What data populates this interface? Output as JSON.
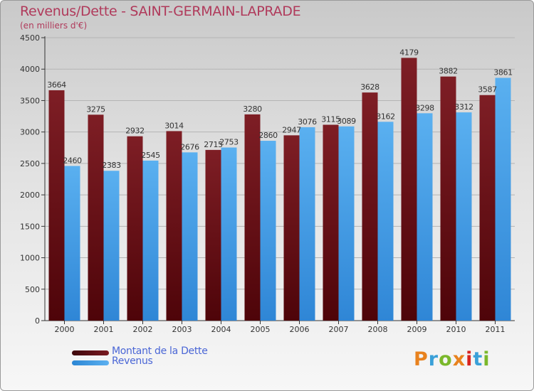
{
  "title": "Revenus/Dette - SAINT-GERMAIN-LAPRADE",
  "subtitle": "(en milliers d'€)",
  "legend": [
    {
      "label": "Montant de la Dette",
      "color": "#6b0f16"
    },
    {
      "label": "Revenus",
      "color": "#3d9ae6"
    }
  ],
  "logo": {
    "text": "Proxiti",
    "colors": [
      "#e8821e",
      "#3aa0d8",
      "#7ab82b",
      "#e8821e",
      "#d8231f",
      "#3aa0d8",
      "#7ab82b"
    ]
  },
  "chart_data": {
    "type": "bar",
    "categories": [
      "2000",
      "2001",
      "2002",
      "2003",
      "2004",
      "2005",
      "2006",
      "2007",
      "2008",
      "2009",
      "2010",
      "2011"
    ],
    "series": [
      {
        "name": "Montant de la Dette",
        "color": "#6b0f16",
        "values": [
          3664,
          3275,
          2932,
          3014,
          2715,
          3280,
          2947,
          3115,
          3628,
          4179,
          3882,
          3587
        ]
      },
      {
        "name": "Revenus",
        "color": "#3d9ae6",
        "values": [
          2460,
          2383,
          2545,
          2676,
          2753,
          2860,
          3076,
          3089,
          3162,
          3298,
          3312,
          3861
        ]
      }
    ],
    "ylim": [
      0,
      4500
    ],
    "yticks": [
      0,
      500,
      1000,
      1500,
      2000,
      2500,
      3000,
      3500,
      4000,
      4500
    ],
    "grid": true
  }
}
